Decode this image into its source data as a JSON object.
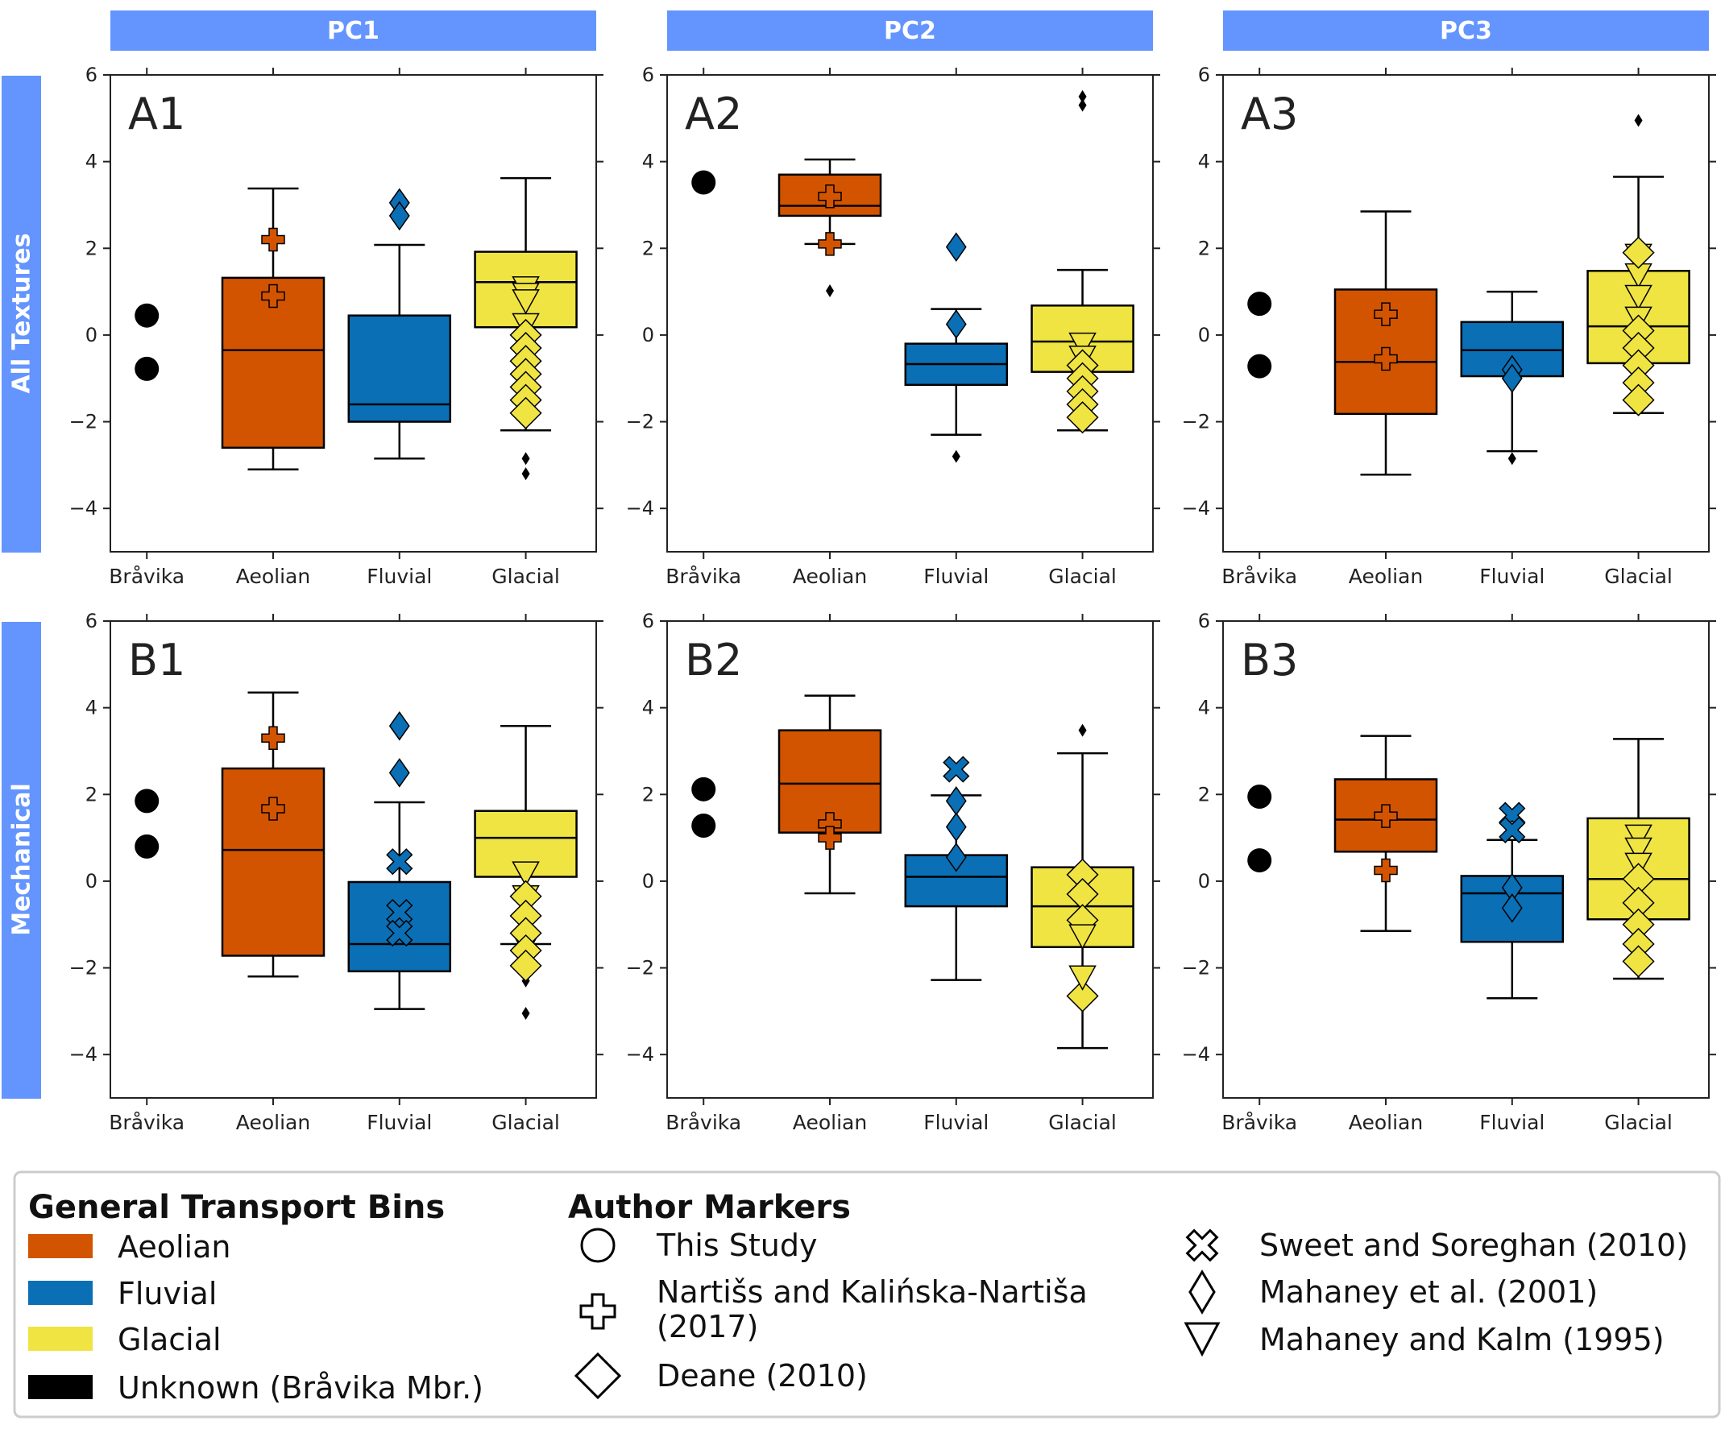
{
  "chart_data": {
    "type": "box",
    "columns": [
      "PC1",
      "PC2",
      "PC3"
    ],
    "rows": [
      "All Textures",
      "Mechanical"
    ],
    "categories": [
      "Bråvika",
      "Aeolian",
      "Fluvial",
      "Glacial"
    ],
    "ylim": [
      -5,
      6
    ],
    "yticks": [
      -4,
      -2,
      0,
      2,
      4,
      6
    ],
    "ytick_labels": [
      "−4",
      "−2",
      "0",
      "2",
      "4",
      "6"
    ],
    "colors": {
      "Aeolian": "#d35400",
      "Fluvial": "#0a6fb5",
      "Glacial": "#f0e442",
      "Bråvika": "#000000",
      "header": "#6495ff"
    },
    "panels": [
      {
        "label": "A1",
        "row": 0,
        "col": 0,
        "bravika": [
          0.45,
          -0.78
        ],
        "boxes": {
          "Aeolian": {
            "whislo": -3.1,
            "q1": -2.6,
            "med": -0.35,
            "q3": 1.32,
            "whishi": 3.38,
            "fliers": []
          },
          "Fluvial": {
            "whislo": -2.85,
            "q1": -2.0,
            "med": -1.6,
            "q3": 0.45,
            "whishi": 2.08,
            "fliers": []
          },
          "Glacial": {
            "whislo": -2.2,
            "q1": 0.18,
            "med": 1.22,
            "q3": 1.92,
            "whishi": 3.62,
            "fliers": [
              -2.85,
              -3.2
            ]
          }
        },
        "markers": [
          {
            "cat": "Aeolian",
            "shape": "plus",
            "y": [
              2.2,
              0.9
            ]
          },
          {
            "cat": "Fluvial",
            "shape": "thin-diamond",
            "y": [
              3.05,
              2.75
            ]
          },
          {
            "cat": "Glacial",
            "shape": "triangle",
            "y": [
              1.1,
              0.95,
              0.8,
              0.25
            ]
          },
          {
            "cat": "Glacial",
            "shape": "diamond",
            "y": [
              0.0,
              -0.3,
              -0.6,
              -0.9,
              -1.2,
              -1.5,
              -1.8
            ]
          }
        ]
      },
      {
        "label": "A2",
        "row": 0,
        "col": 1,
        "bravika": [
          3.52
        ],
        "boxes": {
          "Aeolian": {
            "whislo": 2.1,
            "q1": 2.75,
            "med": 2.98,
            "q3": 3.7,
            "whishi": 4.05,
            "fliers": [
              1.02
            ]
          },
          "Fluvial": {
            "whislo": -2.3,
            "q1": -1.15,
            "med": -0.67,
            "q3": -0.2,
            "whishi": 0.6,
            "fliers": [
              -2.8
            ]
          },
          "Glacial": {
            "whislo": -2.2,
            "q1": -0.85,
            "med": -0.15,
            "q3": 0.68,
            "whishi": 1.5,
            "fliers": [
              5.3,
              5.5
            ]
          }
        },
        "markers": [
          {
            "cat": "Aeolian",
            "shape": "plus",
            "y": [
              3.2,
              2.1
            ]
          },
          {
            "cat": "Fluvial",
            "shape": "thin-diamond",
            "y": [
              2.03,
              0.25
            ]
          },
          {
            "cat": "Glacial",
            "shape": "triangle",
            "y": [
              -0.2,
              -0.5,
              -0.9
            ]
          },
          {
            "cat": "Glacial",
            "shape": "diamond",
            "y": [
              -0.7,
              -1.0,
              -1.3,
              -1.6,
              -1.9
            ]
          }
        ]
      },
      {
        "label": "A3",
        "row": 0,
        "col": 2,
        "bravika": [
          0.72,
          -0.72
        ],
        "boxes": {
          "Aeolian": {
            "whislo": -3.22,
            "q1": -1.82,
            "med": -0.62,
            "q3": 1.05,
            "whishi": 2.85,
            "fliers": []
          },
          "Fluvial": {
            "whislo": -2.68,
            "q1": -0.95,
            "med": -0.35,
            "q3": 0.3,
            "whishi": 1.0,
            "fliers": [
              -2.85
            ]
          },
          "Glacial": {
            "whislo": -1.8,
            "q1": -0.65,
            "med": 0.2,
            "q3": 1.48,
            "whishi": 3.65,
            "fliers": [
              4.95
            ]
          }
        },
        "markers": [
          {
            "cat": "Aeolian",
            "shape": "plus",
            "y": [
              0.48,
              -0.55
            ]
          },
          {
            "cat": "Fluvial",
            "shape": "thin-diamond",
            "y": [
              -0.8,
              -1.0
            ]
          },
          {
            "cat": "Glacial",
            "shape": "triangle",
            "y": [
              1.85,
              1.4,
              0.9,
              0.4
            ]
          },
          {
            "cat": "Glacial",
            "shape": "diamond",
            "y": [
              1.9,
              0.1,
              -0.3,
              -0.7,
              -1.1,
              -1.5
            ]
          }
        ]
      },
      {
        "label": "B1",
        "row": 1,
        "col": 0,
        "bravika": [
          1.85,
          0.8
        ],
        "boxes": {
          "Aeolian": {
            "whislo": -2.2,
            "q1": -1.72,
            "med": 0.72,
            "q3": 2.6,
            "whishi": 4.35,
            "fliers": []
          },
          "Fluvial": {
            "whislo": -2.95,
            "q1": -2.08,
            "med": -1.45,
            "q3": -0.02,
            "whishi": 1.82,
            "fliers": []
          },
          "Glacial": {
            "whislo": -1.45,
            "q1": 0.1,
            "med": 1.0,
            "q3": 1.62,
            "whishi": 3.58,
            "fliers": [
              -2.3,
              -3.05
            ]
          }
        },
        "markers": [
          {
            "cat": "Aeolian",
            "shape": "plus",
            "y": [
              3.3,
              1.67
            ]
          },
          {
            "cat": "Fluvial",
            "shape": "thin-diamond",
            "y": [
              3.58,
              2.5
            ]
          },
          {
            "cat": "Fluvial",
            "shape": "x",
            "y": [
              0.45,
              -0.72,
              -1.2
            ]
          },
          {
            "cat": "Glacial",
            "shape": "triangle",
            "y": [
              0.2,
              -0.35,
              -1.45
            ]
          },
          {
            "cat": "Glacial",
            "shape": "diamond",
            "y": [
              -0.35,
              -0.8,
              -1.2,
              -1.6,
              -1.95
            ]
          }
        ]
      },
      {
        "label": "B2",
        "row": 1,
        "col": 1,
        "bravika": [
          2.12,
          1.28
        ],
        "boxes": {
          "Aeolian": {
            "whislo": -0.28,
            "q1": 1.12,
            "med": 2.25,
            "q3": 3.48,
            "whishi": 4.28,
            "fliers": []
          },
          "Fluvial": {
            "whislo": -2.28,
            "q1": -0.58,
            "med": 0.1,
            "q3": 0.6,
            "whishi": 1.98,
            "fliers": []
          },
          "Glacial": {
            "whislo": -3.85,
            "q1": -1.52,
            "med": -0.58,
            "q3": 0.32,
            "whishi": 2.95,
            "fliers": [
              3.48
            ]
          }
        },
        "markers": [
          {
            "cat": "Aeolian",
            "shape": "plus",
            "y": [
              1.32,
              1.0
            ]
          },
          {
            "cat": "Fluvial",
            "shape": "x",
            "y": [
              2.58
            ]
          },
          {
            "cat": "Fluvial",
            "shape": "thin-diamond",
            "y": [
              1.85,
              1.25,
              0.55
            ]
          },
          {
            "cat": "Glacial",
            "shape": "diamond",
            "y": [
              0.15,
              -0.3,
              -0.9,
              -2.65
            ]
          },
          {
            "cat": "Glacial",
            "shape": "triangle",
            "y": [
              -1.25,
              -2.2
            ]
          }
        ]
      },
      {
        "label": "B3",
        "row": 1,
        "col": 2,
        "bravika": [
          1.95,
          0.48
        ],
        "boxes": {
          "Aeolian": {
            "whislo": -1.15,
            "q1": 0.68,
            "med": 1.42,
            "q3": 2.35,
            "whishi": 3.35,
            "fliers": []
          },
          "Fluvial": {
            "whislo": -2.7,
            "q1": -1.4,
            "med": -0.28,
            "q3": 0.12,
            "whishi": 0.95,
            "fliers": []
          },
          "Glacial": {
            "whislo": -2.25,
            "q1": -0.88,
            "med": 0.05,
            "q3": 1.45,
            "whishi": 3.28,
            "fliers": []
          }
        },
        "markers": [
          {
            "cat": "Aeolian",
            "shape": "plus",
            "y": [
              1.5,
              0.25
            ]
          },
          {
            "cat": "Fluvial",
            "shape": "x",
            "y": [
              1.52,
              1.18
            ]
          },
          {
            "cat": "Fluvial",
            "shape": "thin-diamond",
            "y": [
              -0.15,
              -0.62
            ]
          },
          {
            "cat": "Glacial",
            "shape": "triangle",
            "y": [
              1.05,
              0.75,
              0.4
            ]
          },
          {
            "cat": "Glacial",
            "shape": "diamond",
            "y": [
              0.05,
              -0.5,
              -1.0,
              -1.45,
              -1.85
            ]
          }
        ]
      }
    ]
  },
  "legend": {
    "bins_title": "General Transport Bins",
    "bins": [
      {
        "label": "Aeolian",
        "color": "#d35400"
      },
      {
        "label": "Fluvial",
        "color": "#0a6fb5"
      },
      {
        "label": "Glacial",
        "color": "#f0e442"
      },
      {
        "label": "Unknown (Bråvika Mbr.)",
        "color": "#000000"
      }
    ],
    "markers_title": "Author Markers",
    "markers_col1": [
      {
        "icon": "circle-icon",
        "line1": "This Study",
        "line2": ""
      },
      {
        "icon": "plus-icon",
        "line1": "Nartišs and Kalińska-Nartiša",
        "line2": "(2017)"
      },
      {
        "icon": "diamond-icon",
        "line1": "Deane (2010)",
        "line2": ""
      }
    ],
    "markers_col2": [
      {
        "icon": "x-icon",
        "label": "Sweet and Soreghan (2010)"
      },
      {
        "icon": "thin-diamond-icon",
        "label": "Mahaney et al. (2001)"
      },
      {
        "icon": "triangle-down-icon",
        "label": "Mahaney and Kalm (1995)"
      }
    ]
  }
}
